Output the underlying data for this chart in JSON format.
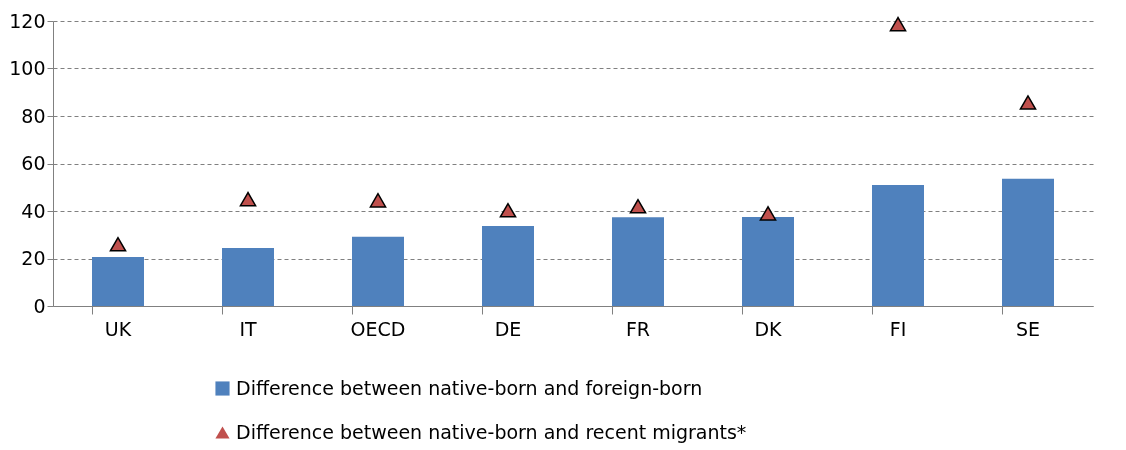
{
  "chart_data": {
    "type": "bar",
    "categories": [
      "UK",
      "IT",
      "OECD",
      "DE",
      "FR",
      "DK",
      "FI",
      "SE"
    ],
    "series": [
      {
        "name": "Difference between native-born and foreign-born",
        "color": "#4f81bd",
        "values": [
          20.6,
          24.4,
          29.2,
          33.7,
          37.4,
          37.5,
          51,
          53.6
        ]
      },
      {
        "name": "Difference between native-born and recent migrants*",
        "color": "#c0504d",
        "type": "scatter",
        "marker": "triangle",
        "values": [
          26,
          45,
          44.5,
          40.3,
          42,
          39,
          118.7,
          85.7
        ]
      }
    ],
    "ylim": [
      0,
      120
    ],
    "yticks": [
      0,
      20,
      40,
      60,
      80,
      100,
      120
    ],
    "grid": "y",
    "legend": "bottom"
  }
}
